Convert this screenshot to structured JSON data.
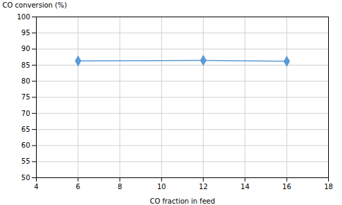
{
  "chart_data": {
    "type": "line",
    "x": [
      6,
      12,
      16
    ],
    "values": [
      86.3,
      86.5,
      86.2
    ],
    "xlabel": "CO fraction in feed",
    "ylabel": "CO conversion (%)",
    "xlim": [
      4,
      18
    ],
    "ylim": [
      50,
      100
    ],
    "xticks": [
      4,
      6,
      8,
      10,
      12,
      14,
      16,
      18
    ],
    "yticks": [
      50,
      55,
      60,
      65,
      70,
      75,
      80,
      85,
      90,
      95,
      100
    ],
    "color": "#5b9bd5",
    "marker": "diamond",
    "grid": true
  }
}
